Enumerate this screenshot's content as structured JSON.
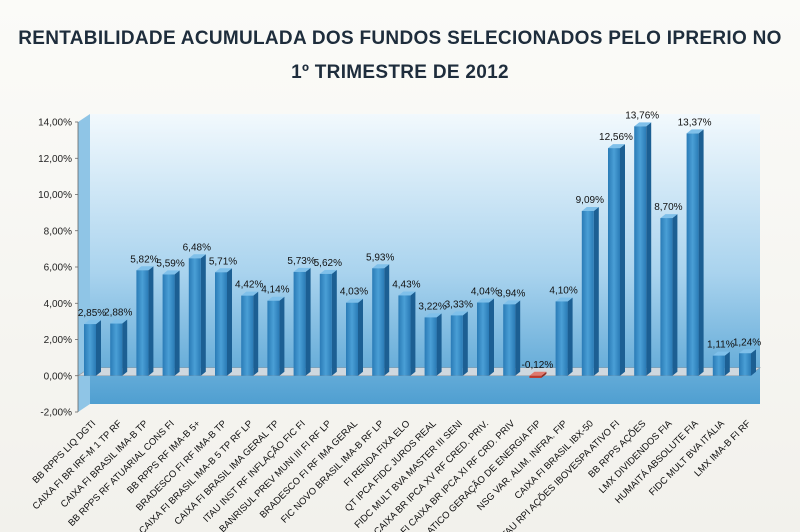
{
  "chart_data": {
    "type": "bar",
    "title": "RENTABILIDADE ACUMULADA DOS FUNDOS SELECIONADOS PELO IPRERIO NO",
    "subtitle": "1º TRIMESTRE DE 2012",
    "ylim": [
      -2,
      14
    ],
    "ytick_labels": [
      "-2,00%",
      "0,00%",
      "2,00%",
      "4,00%",
      "6,00%",
      "8,00%",
      "10,00%",
      "12,00%",
      "14,00%"
    ],
    "categories": [
      "BB RPPS LIQ DGTI",
      "CAIXA FI BR IRF-M 1 TP RF",
      "CAIXA FI BRASIL IMA-B TP",
      "BB RPPS RF ATUARIAL CONS FI",
      "BB RPPS RF IMA-B 5+",
      "BRADESCO FI RF IMA-B TP",
      "CAIXA FI BRASIL IMA-B 5 TP RF LP",
      "CAIXA FI BRASIL IMA GERAL TP",
      "ITAU INST RF INFLAÇÃO FIC FI",
      "BANRISUL PREV MUNI III FI RF LP",
      "BRADESCO FI RF IMA GERAL",
      "FIC NOVO BRASIL IMA-B RF LP",
      "FI RENDA FIXA ELO",
      "QT IPCA FIDC JUROS REAL",
      "FIDC MULT BVA MASTER III SENI",
      "FI CAIXA BR IPCA XV RF CRED. PRIV.",
      "FI CAIXA BR IPCA XI RF CRD. PRIV",
      "ATICO GERAÇÃO DE ENERGIA FIP",
      "NSG VAR. ALIM. INFRA. FIP",
      "CAIXA FI BRASIL IBX-50",
      "ITAU RPI AÇÕES IBOVESPA ATIVO FI",
      "BB RPPS AÇÕES",
      "LMX DIVIDENDOS FIA",
      "HUMAITÁ ABSOLUTE FIA",
      "FIDC MULT BVA ITÁLIA",
      "LMX IMA-B FI RF"
    ],
    "values": [
      2.85,
      2.88,
      5.82,
      5.59,
      6.48,
      5.71,
      4.42,
      4.14,
      5.73,
      5.62,
      4.03,
      5.93,
      4.43,
      3.22,
      3.33,
      4.04,
      3.94,
      -0.12,
      4.1,
      9.09,
      12.56,
      13.76,
      8.7,
      13.37,
      1.11,
      1.24
    ],
    "labels": [
      "2,85%",
      "2,88%",
      "5,82%",
      "5,59%",
      "6,48%",
      "5,71%",
      "4,42%",
      "4,14%",
      "5,73%",
      "5,62%",
      "4,03%",
      "5,93%",
      "4,43%",
      "3,22%",
      "3,33%",
      "4,04%",
      "3,94%",
      "-0,12%",
      "4,10%",
      "9,09%",
      "12,56%",
      "13,76%",
      "8,70%",
      "13,37%",
      "1,11%",
      "1,24%"
    ],
    "colors": {
      "positive": "#2f86c2",
      "positive_side": "#1c5f93",
      "positive_top": "#7fc0ea",
      "negative": "#c0392b",
      "wall_top": "#eaf5fb",
      "wall_bottom": "#5aa8d6",
      "floor": "#d9dfe4"
    },
    "grid": false,
    "legend": "none"
  }
}
